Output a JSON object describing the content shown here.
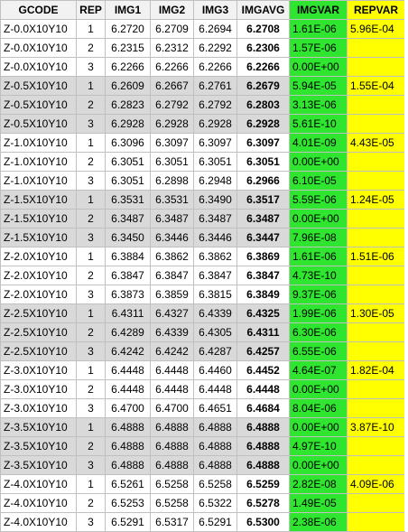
{
  "headers": [
    "GCODE",
    "REP",
    "IMG1",
    "IMG2",
    "IMG3",
    "IMGAVG",
    "IMGVAR",
    "REPVAR"
  ],
  "colors": {
    "imgvar_fill": "#2fe52f",
    "repvar_fill": "#ffff00",
    "shaded_row": "#d9d9d9",
    "gridline": "#c0c0c0"
  },
  "rows": [
    {
      "gcode": "Z-0.0X10Y10",
      "rep": "1",
      "img1": "6.2720",
      "img2": "6.2709",
      "img3": "6.2694",
      "imgavg": "6.2708",
      "imgvar": "1.61E-06",
      "repvar": "5.96E-04",
      "shaded": false
    },
    {
      "gcode": "Z-0.0X10Y10",
      "rep": "2",
      "img1": "6.2315",
      "img2": "6.2312",
      "img3": "6.2292",
      "imgavg": "6.2306",
      "imgvar": "1.57E-06",
      "repvar": "",
      "shaded": false
    },
    {
      "gcode": "Z-0.0X10Y10",
      "rep": "3",
      "img1": "6.2266",
      "img2": "6.2266",
      "img3": "6.2266",
      "imgavg": "6.2266",
      "imgvar": "0.00E+00",
      "repvar": "",
      "shaded": false
    },
    {
      "gcode": "Z-0.5X10Y10",
      "rep": "1",
      "img1": "6.2609",
      "img2": "6.2667",
      "img3": "6.2761",
      "imgavg": "6.2679",
      "imgvar": "5.94E-05",
      "repvar": "1.55E-04",
      "shaded": true
    },
    {
      "gcode": "Z-0.5X10Y10",
      "rep": "2",
      "img1": "6.2823",
      "img2": "6.2792",
      "img3": "6.2792",
      "imgavg": "6.2803",
      "imgvar": "3.13E-06",
      "repvar": "",
      "shaded": true
    },
    {
      "gcode": "Z-0.5X10Y10",
      "rep": "3",
      "img1": "6.2928",
      "img2": "6.2928",
      "img3": "6.2928",
      "imgavg": "6.2928",
      "imgvar": "5.61E-10",
      "repvar": "",
      "shaded": true
    },
    {
      "gcode": "Z-1.0X10Y10",
      "rep": "1",
      "img1": "6.3096",
      "img2": "6.3097",
      "img3": "6.3097",
      "imgavg": "6.3097",
      "imgvar": "4.01E-09",
      "repvar": "4.43E-05",
      "shaded": false
    },
    {
      "gcode": "Z-1.0X10Y10",
      "rep": "2",
      "img1": "6.3051",
      "img2": "6.3051",
      "img3": "6.3051",
      "imgavg": "6.3051",
      "imgvar": "0.00E+00",
      "repvar": "",
      "shaded": false
    },
    {
      "gcode": "Z-1.0X10Y10",
      "rep": "3",
      "img1": "6.3051",
      "img2": "6.2898",
      "img3": "6.2948",
      "imgavg": "6.2966",
      "imgvar": "6.10E-05",
      "repvar": "",
      "shaded": false
    },
    {
      "gcode": "Z-1.5X10Y10",
      "rep": "1",
      "img1": "6.3531",
      "img2": "6.3531",
      "img3": "6.3490",
      "imgavg": "6.3517",
      "imgvar": "5.59E-06",
      "repvar": "1.24E-05",
      "shaded": true
    },
    {
      "gcode": "Z-1.5X10Y10",
      "rep": "2",
      "img1": "6.3487",
      "img2": "6.3487",
      "img3": "6.3487",
      "imgavg": "6.3487",
      "imgvar": "0.00E+00",
      "repvar": "",
      "shaded": true
    },
    {
      "gcode": "Z-1.5X10Y10",
      "rep": "3",
      "img1": "6.3450",
      "img2": "6.3446",
      "img3": "6.3446",
      "imgavg": "6.3447",
      "imgvar": "7.96E-08",
      "repvar": "",
      "shaded": true
    },
    {
      "gcode": "Z-2.0X10Y10",
      "rep": "1",
      "img1": "6.3884",
      "img2": "6.3862",
      "img3": "6.3862",
      "imgavg": "6.3869",
      "imgvar": "1.61E-06",
      "repvar": "1.51E-06",
      "shaded": false
    },
    {
      "gcode": "Z-2.0X10Y10",
      "rep": "2",
      "img1": "6.3847",
      "img2": "6.3847",
      "img3": "6.3847",
      "imgavg": "6.3847",
      "imgvar": "4.73E-10",
      "repvar": "",
      "shaded": false
    },
    {
      "gcode": "Z-2.0X10Y10",
      "rep": "3",
      "img1": "6.3873",
      "img2": "6.3859",
      "img3": "6.3815",
      "imgavg": "6.3849",
      "imgvar": "9.37E-06",
      "repvar": "",
      "shaded": false
    },
    {
      "gcode": "Z-2.5X10Y10",
      "rep": "1",
      "img1": "6.4311",
      "img2": "6.4327",
      "img3": "6.4339",
      "imgavg": "6.4325",
      "imgvar": "1.99E-06",
      "repvar": "1.30E-05",
      "shaded": true
    },
    {
      "gcode": "Z-2.5X10Y10",
      "rep": "2",
      "img1": "6.4289",
      "img2": "6.4339",
      "img3": "6.4305",
      "imgavg": "6.4311",
      "imgvar": "6.30E-06",
      "repvar": "",
      "shaded": true
    },
    {
      "gcode": "Z-2.5X10Y10",
      "rep": "3",
      "img1": "6.4242",
      "img2": "6.4242",
      "img3": "6.4287",
      "imgavg": "6.4257",
      "imgvar": "6.55E-06",
      "repvar": "",
      "shaded": true
    },
    {
      "gcode": "Z-3.0X10Y10",
      "rep": "1",
      "img1": "6.4448",
      "img2": "6.4448",
      "img3": "6.4460",
      "imgavg": "6.4452",
      "imgvar": "4.64E-07",
      "repvar": "1.82E-04",
      "shaded": false
    },
    {
      "gcode": "Z-3.0X10Y10",
      "rep": "2",
      "img1": "6.4448",
      "img2": "6.4448",
      "img3": "6.4448",
      "imgavg": "6.4448",
      "imgvar": "0.00E+00",
      "repvar": "",
      "shaded": false
    },
    {
      "gcode": "Z-3.0X10Y10",
      "rep": "3",
      "img1": "6.4700",
      "img2": "6.4700",
      "img3": "6.4651",
      "imgavg": "6.4684",
      "imgvar": "8.04E-06",
      "repvar": "",
      "shaded": false
    },
    {
      "gcode": "Z-3.5X10Y10",
      "rep": "1",
      "img1": "6.4888",
      "img2": "6.4888",
      "img3": "6.4888",
      "imgavg": "6.4888",
      "imgvar": "0.00E+00",
      "repvar": "3.87E-10",
      "shaded": true
    },
    {
      "gcode": "Z-3.5X10Y10",
      "rep": "2",
      "img1": "6.4888",
      "img2": "6.4888",
      "img3": "6.4888",
      "imgavg": "6.4888",
      "imgvar": "4.97E-10",
      "repvar": "",
      "shaded": true
    },
    {
      "gcode": "Z-3.5X10Y10",
      "rep": "3",
      "img1": "6.4888",
      "img2": "6.4888",
      "img3": "6.4888",
      "imgavg": "6.4888",
      "imgvar": "0.00E+00",
      "repvar": "",
      "shaded": true
    },
    {
      "gcode": "Z-4.0X10Y10",
      "rep": "1",
      "img1": "6.5261",
      "img2": "6.5258",
      "img3": "6.5258",
      "imgavg": "6.5259",
      "imgvar": "2.82E-08",
      "repvar": "4.09E-06",
      "shaded": false
    },
    {
      "gcode": "Z-4.0X10Y10",
      "rep": "2",
      "img1": "6.5253",
      "img2": "6.5258",
      "img3": "6.5322",
      "imgavg": "6.5278",
      "imgvar": "1.49E-05",
      "repvar": "",
      "shaded": false
    },
    {
      "gcode": "Z-4.0X10Y10",
      "rep": "3",
      "img1": "6.5291",
      "img2": "6.5317",
      "img3": "6.5291",
      "imgavg": "6.5300",
      "imgvar": "2.38E-06",
      "repvar": "",
      "shaded": false
    }
  ]
}
